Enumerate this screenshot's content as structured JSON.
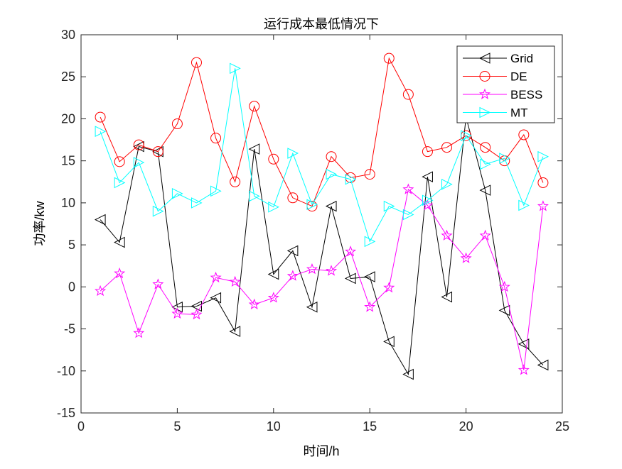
{
  "chart_data": {
    "type": "line",
    "title": "运行成本最低情况下",
    "xlabel": "时间/h",
    "ylabel": "功率/kw",
    "xlim": [
      0,
      25
    ],
    "ylim": [
      -15,
      30
    ],
    "xticks": [
      0,
      5,
      10,
      15,
      20,
      25
    ],
    "yticks": [
      -15,
      -10,
      -5,
      0,
      5,
      10,
      15,
      20,
      25,
      30
    ],
    "grid": false,
    "legend_position": "top-right",
    "x": [
      1,
      2,
      3,
      4,
      5,
      6,
      7,
      8,
      9,
      10,
      11,
      12,
      13,
      14,
      15,
      16,
      17,
      18,
      19,
      20,
      21,
      22,
      23,
      24
    ],
    "series": [
      {
        "name": "Grid",
        "color": "#000000",
        "marker": "triangle-left",
        "values": [
          8.0,
          5.3,
          16.7,
          16.1,
          -2.4,
          -2.3,
          -1.3,
          -5.3,
          16.4,
          1.5,
          4.3,
          -2.4,
          9.6,
          1.0,
          1.2,
          -6.5,
          -10.4,
          13.1,
          -1.2,
          20.2,
          11.5,
          -2.8,
          -6.8,
          -9.3
        ]
      },
      {
        "name": "DE",
        "color": "#ff0000",
        "marker": "circle",
        "values": [
          20.2,
          14.9,
          16.9,
          16.1,
          19.4,
          26.7,
          17.7,
          12.5,
          21.5,
          15.2,
          10.6,
          9.6,
          15.5,
          13.0,
          13.4,
          27.2,
          22.9,
          16.1,
          16.6,
          18.0,
          16.6,
          15.0,
          18.1,
          12.4
        ]
      },
      {
        "name": "BESS",
        "color": "#ff00ff",
        "marker": "pentagram",
        "values": [
          -0.5,
          1.6,
          -5.5,
          0.3,
          -3.2,
          -3.3,
          1.1,
          0.6,
          -2.1,
          -1.3,
          1.3,
          2.1,
          1.9,
          4.2,
          -2.4,
          -0.1,
          11.6,
          9.7,
          6.1,
          3.4,
          6.1,
          0.0,
          -9.9,
          9.6
        ]
      },
      {
        "name": "MT",
        "color": "#00ffff",
        "marker": "triangle-right",
        "values": [
          18.5,
          12.4,
          14.8,
          9.0,
          11.1,
          10.0,
          11.4,
          26.0,
          10.8,
          9.5,
          15.9,
          9.8,
          13.4,
          12.8,
          5.4,
          9.6,
          8.6,
          10.3,
          12.2,
          18.0,
          14.6,
          15.3,
          9.7,
          15.5
        ]
      }
    ]
  }
}
